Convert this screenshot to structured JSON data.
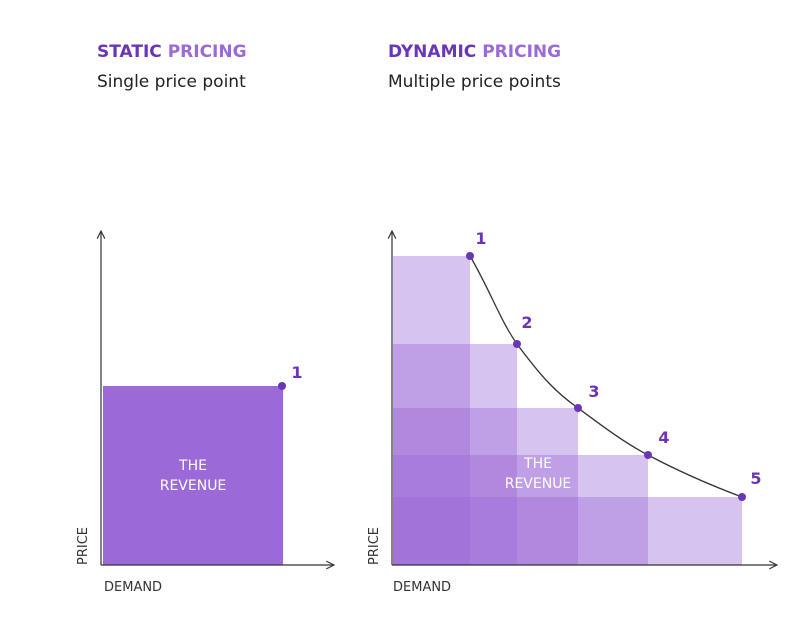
{
  "static": {
    "title": [
      "STATIC",
      "PRICING"
    ],
    "subtitle": "Single price point",
    "y_label": "PRICE",
    "x_label": "DEMAND",
    "area_label": [
      "THE",
      "REVENUE"
    ],
    "points": [
      "1"
    ]
  },
  "dynamic": {
    "title": [
      "DYNAMIC",
      "PRICING"
    ],
    "subtitle": "Multiple price points",
    "y_label": "PRICE",
    "x_label": "DEMAND",
    "area_label": [
      "THE",
      "REVENUE"
    ],
    "points": [
      "1",
      "2",
      "3",
      "4",
      "5"
    ]
  }
}
